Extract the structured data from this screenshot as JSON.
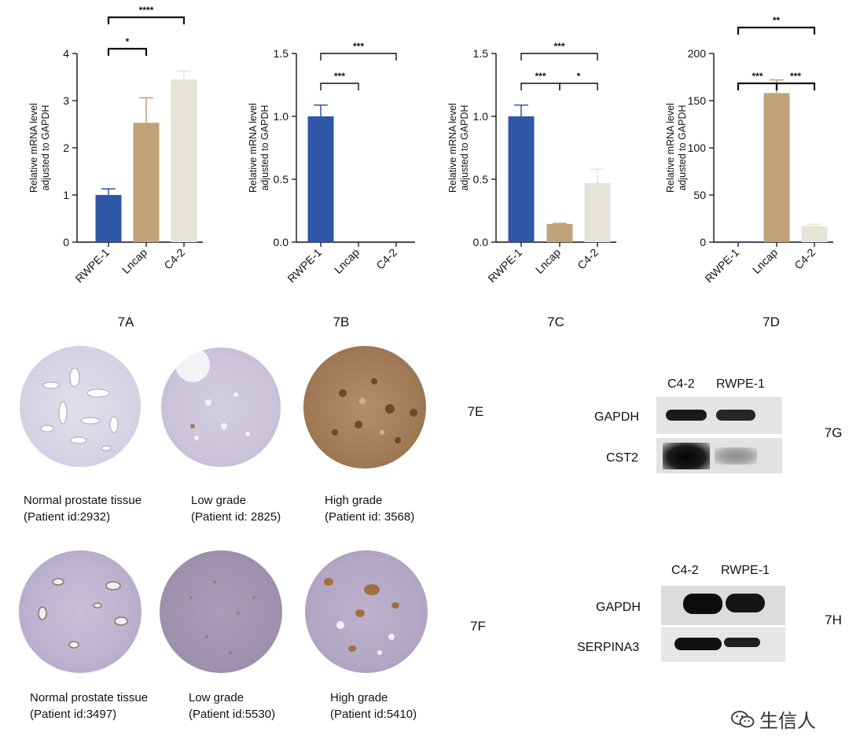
{
  "chart_data": [
    {
      "type": "bar",
      "panel": "7A",
      "categories": [
        "RWPE-1",
        "Lncap",
        "C4-2"
      ],
      "values": [
        1.0,
        2.53,
        3.45
      ],
      "errors": [
        0.13,
        0.53,
        0.18
      ],
      "ylabel": "Relative mRNA level adjusted to GAPDH",
      "ylim": [
        0,
        4
      ],
      "yticks": [
        "0",
        "1",
        "2",
        "3",
        "4"
      ],
      "colors": [
        "#2f57a8",
        "#bfa278",
        "#e6e3d8"
      ],
      "significance": [
        {
          "pair": [
            "RWPE-1",
            "Lncap"
          ],
          "label": "*"
        },
        {
          "pair": [
            "RWPE-1",
            "C4-2"
          ],
          "label": "****"
        }
      ]
    },
    {
      "type": "bar",
      "panel": "7B",
      "categories": [
        "RWPE-1",
        "Lncap",
        "C4-2"
      ],
      "values": [
        1.0,
        0.0,
        0.0
      ],
      "errors": [
        0.09,
        0,
        0
      ],
      "ylabel": "Relative mRNA level adjusted to GAPDH",
      "ylim": [
        0,
        1.5
      ],
      "yticks": [
        "0.0",
        "0.5",
        "1.0",
        "1.5"
      ],
      "colors": [
        "#2f57a8",
        "#bfa278",
        "#e6e3d8"
      ],
      "significance": [
        {
          "pair": [
            "RWPE-1",
            "Lncap"
          ],
          "label": "***"
        },
        {
          "pair": [
            "RWPE-1",
            "C4-2"
          ],
          "label": "***"
        }
      ]
    },
    {
      "type": "bar",
      "panel": "7C",
      "categories": [
        "RWPE-1",
        "Lncap",
        "C4-2"
      ],
      "values": [
        1.0,
        0.145,
        0.47
      ],
      "errors": [
        0.09,
        0.005,
        0.11
      ],
      "ylabel": "Relative mRNA level adjusted to GAPDH",
      "ylim": [
        0,
        1.5
      ],
      "yticks": [
        "0.0",
        "0.5",
        "1.0",
        "1.5"
      ],
      "colors": [
        "#2f57a8",
        "#bfa278",
        "#e6e3d8"
      ],
      "significance": [
        {
          "pair": [
            "RWPE-1",
            "Lncap"
          ],
          "label": "***"
        },
        {
          "pair": [
            "Lncap",
            "C4-2"
          ],
          "label": "*"
        },
        {
          "pair": [
            "RWPE-1",
            "C4-2"
          ],
          "label": "***"
        }
      ]
    },
    {
      "type": "bar",
      "panel": "7D",
      "categories": [
        "RWPE-1",
        "Lncap",
        "C4-2"
      ],
      "values": [
        1,
        158,
        17
      ],
      "errors": [
        0,
        14,
        2
      ],
      "ylabel": "Relative mRNA level adjusted to GAPDH",
      "ylim": [
        0,
        200
      ],
      "yticks": [
        "0",
        "50",
        "100",
        "150",
        "200"
      ],
      "colors": [
        "#2f57a8",
        "#bfa278",
        "#e6e3d8"
      ],
      "significance": [
        {
          "pair": [
            "RWPE-1",
            "Lncap"
          ],
          "label": "***"
        },
        {
          "pair": [
            "Lncap",
            "C4-2"
          ],
          "label": "***"
        },
        {
          "pair": [
            "RWPE-1",
            "C4-2"
          ],
          "label": "**"
        }
      ]
    }
  ],
  "panels": {
    "A": "7A",
    "B": "7B",
    "C": "7C",
    "D": "7D",
    "E": "7E",
    "F": "7F",
    "G": "7G",
    "H": "7H"
  },
  "ihc_row_e": [
    {
      "line1": "Normal prostate tissue",
      "line2": "(Patient id:2932)"
    },
    {
      "line1": "Low grade",
      "line2": "(Patient id: 2825)"
    },
    {
      "line1": "High grade",
      "line2": "(Patient id: 3568)"
    }
  ],
  "ihc_row_f": [
    {
      "line1": "Normal prostate tissue",
      "line2": "(Patient id:3497)"
    },
    {
      "line1": "Low grade",
      "line2": "(Patient id:5530)"
    },
    {
      "line1": "High grade",
      "line2": "(Patient id:5410)"
    }
  ],
  "blot_g": {
    "lanes": [
      "C4-2",
      "RWPE-1"
    ],
    "rows": [
      "GAPDH",
      "CST2"
    ]
  },
  "blot_h": {
    "lanes": [
      "C4-2",
      "RWPE-1"
    ],
    "rows": [
      "GAPDH",
      "SERPINA3"
    ]
  },
  "watermark": "生信人"
}
